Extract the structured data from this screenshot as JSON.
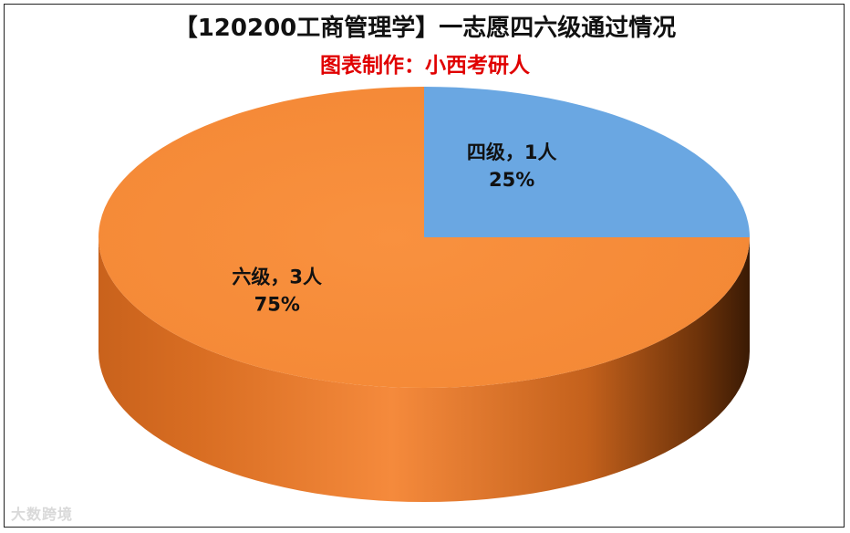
{
  "chart_data": {
    "type": "pie",
    "title": "【120200工商管理学】一志愿四六级通过情况",
    "subtitle": "图表制作：小西考研人",
    "slices": [
      {
        "label": "四级",
        "count": 1,
        "count_text": "四级，1人",
        "percent": 25,
        "percent_text": "25%",
        "color": "#6aa7e2"
      },
      {
        "label": "六级",
        "count": 3,
        "count_text": "六级，3人",
        "percent": 75,
        "percent_text": "75%",
        "color": "#f58a3c"
      }
    ]
  },
  "watermark": "大数跨境"
}
